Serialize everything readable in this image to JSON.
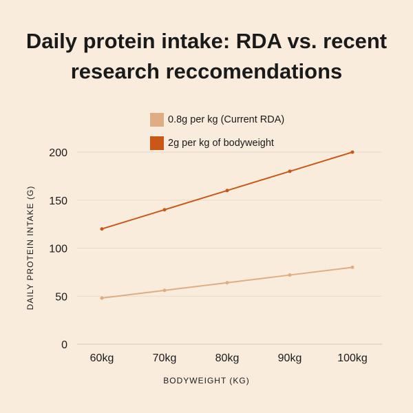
{
  "chart_data": {
    "type": "line",
    "title": "Daily protein intake: RDA vs. recent research reccomendations",
    "xlabel": "BODYWEIGHT (KG)",
    "ylabel": "DAILY PROTEIN INTAKE (G)",
    "categories": [
      "60kg",
      "70kg",
      "80kg",
      "90kg",
      "100kg"
    ],
    "ylim": [
      0,
      200
    ],
    "yticks": [
      "0",
      "50",
      "100",
      "150",
      "200"
    ],
    "grid": true,
    "legend_placement": "top",
    "series": [
      {
        "name": "0.8g per kg (Current RDA)",
        "values": [
          48,
          56,
          64,
          72,
          80
        ],
        "color": "#dfad83"
      },
      {
        "name": "2g per kg of bodyweight",
        "values": [
          120,
          140,
          160,
          180,
          200
        ],
        "color": "#c95818"
      }
    ]
  },
  "colors": {
    "background": "#f9ecdd",
    "grid": "#e8d9c6"
  }
}
